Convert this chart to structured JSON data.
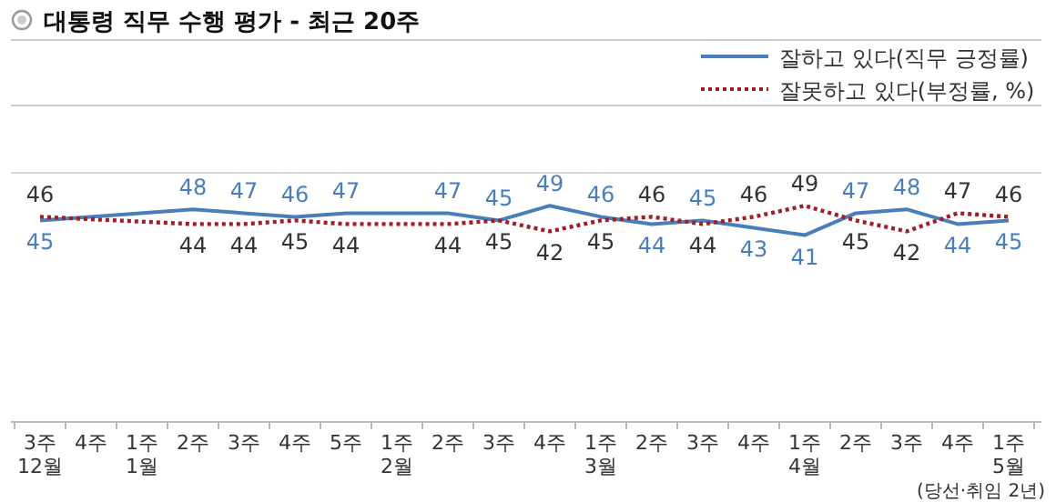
{
  "chart_data": {
    "type": "line",
    "title": "대통령 직무 수행 평가 - 최근 20주",
    "categories": [
      "3주 12월",
      "4주",
      "1주 1월",
      "2주",
      "3주",
      "4주",
      "5주",
      "1주 2월",
      "2주",
      "3주",
      "4주",
      "1주 3월",
      "2주",
      "3주",
      "4주",
      "1주 4월",
      "2주",
      "3주",
      "4주",
      "1주 5월"
    ],
    "series": [
      {
        "name": "잘하고 있다(직무 긍정률)",
        "color": "#4a7ebb",
        "line_style": "solid",
        "values": [
          45,
          null,
          null,
          48,
          47,
          46,
          47,
          null,
          47,
          45,
          49,
          46,
          44,
          45,
          43,
          41,
          47,
          48,
          44,
          45
        ]
      },
      {
        "name": "잘못하고 있다(부정률, %)",
        "color": "#a31d24",
        "line_style": "dotted",
        "values": [
          46,
          null,
          null,
          44,
          44,
          45,
          44,
          null,
          44,
          45,
          42,
          45,
          46,
          44,
          46,
          49,
          45,
          42,
          47,
          46
        ]
      }
    ],
    "ylim": [
      -10,
      58
    ],
    "data_labels": true,
    "legend": "top right",
    "annotations": [
      "(당선·취임 2년)"
    ]
  }
}
